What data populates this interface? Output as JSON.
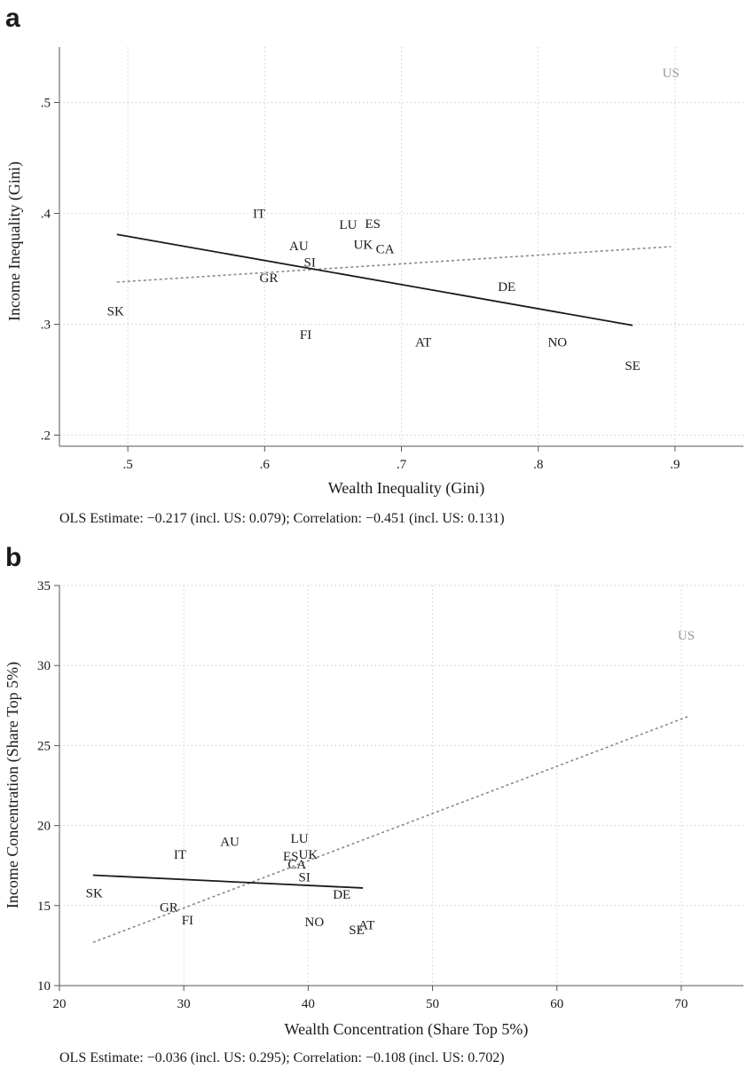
{
  "chart_data": [
    {
      "panel": "a",
      "type": "scatter",
      "xlabel": "Wealth Inequality (Gini)",
      "ylabel": "Income Inequality (Gini)",
      "xlim": [
        0.45,
        0.95
      ],
      "ylim": [
        0.19,
        0.55
      ],
      "xticks": [
        0.5,
        0.6,
        0.7,
        0.8,
        0.9
      ],
      "xtick_labels": [
        ".5",
        ".6",
        ".7",
        ".8",
        ".9"
      ],
      "yticks": [
        0.2,
        0.3,
        0.4,
        0.5
      ],
      "ytick_labels": [
        ".2",
        ".3",
        ".4",
        ".5"
      ],
      "grid": true,
      "points": [
        {
          "label": "US",
          "x": 0.897,
          "y": 0.527,
          "color": "#999999"
        },
        {
          "label": "IT",
          "x": 0.596,
          "y": 0.4
        },
        {
          "label": "LU",
          "x": 0.661,
          "y": 0.39
        },
        {
          "label": "ES",
          "x": 0.679,
          "y": 0.391
        },
        {
          "label": "AU",
          "x": 0.625,
          "y": 0.371
        },
        {
          "label": "UK",
          "x": 0.672,
          "y": 0.372
        },
        {
          "label": "CA",
          "x": 0.688,
          "y": 0.368
        },
        {
          "label": "SI",
          "x": 0.633,
          "y": 0.356
        },
        {
          "label": "GR",
          "x": 0.603,
          "y": 0.342
        },
        {
          "label": "DE",
          "x": 0.777,
          "y": 0.334
        },
        {
          "label": "SK",
          "x": 0.491,
          "y": 0.312
        },
        {
          "label": "FI",
          "x": 0.63,
          "y": 0.291
        },
        {
          "label": "AT",
          "x": 0.716,
          "y": 0.284
        },
        {
          "label": "NO",
          "x": 0.814,
          "y": 0.284
        },
        {
          "label": "SE",
          "x": 0.869,
          "y": 0.263
        }
      ],
      "fit_excl_us": {
        "x": [
          0.492,
          0.869
        ],
        "y": [
          0.381,
          0.299
        ],
        "color": "#1a1a1a"
      },
      "fit_incl_us": {
        "x": [
          0.492,
          0.897
        ],
        "y": [
          0.338,
          0.37
        ],
        "color": "#888888"
      },
      "note": "OLS Estimate: −0.217 (incl. US: 0.079); Correlation: −0.451 (incl. US: 0.131)"
    },
    {
      "panel": "b",
      "type": "scatter",
      "xlabel": "Wealth Concentration (Share Top 5%)",
      "ylabel": "Income Concentration (Share Top 5%)",
      "xlim": [
        20,
        75
      ],
      "ylim": [
        10,
        35
      ],
      "xticks": [
        20,
        30,
        40,
        50,
        60,
        70
      ],
      "xtick_labels": [
        "20",
        "30",
        "40",
        "50",
        "60",
        "70"
      ],
      "yticks": [
        10,
        15,
        20,
        25,
        30,
        35
      ],
      "ytick_labels": [
        "10",
        "15",
        "20",
        "25",
        "30",
        "35"
      ],
      "grid": true,
      "points": [
        {
          "label": "US",
          "x": 70.4,
          "y": 31.9,
          "color": "#999999"
        },
        {
          "label": "LU",
          "x": 39.3,
          "y": 19.2
        },
        {
          "label": "AU",
          "x": 33.7,
          "y": 19.0
        },
        {
          "label": "IT",
          "x": 29.7,
          "y": 18.2
        },
        {
          "label": "ES",
          "x": 38.6,
          "y": 18.1
        },
        {
          "label": "UK",
          "x": 40.0,
          "y": 18.2
        },
        {
          "label": "CA",
          "x": 39.1,
          "y": 17.6
        },
        {
          "label": "SI",
          "x": 39.7,
          "y": 16.8
        },
        {
          "label": "DE",
          "x": 42.7,
          "y": 15.7
        },
        {
          "label": "SK",
          "x": 22.8,
          "y": 15.8
        },
        {
          "label": "GR",
          "x": 28.8,
          "y": 14.9
        },
        {
          "label": "FI",
          "x": 30.3,
          "y": 14.1
        },
        {
          "label": "NO",
          "x": 40.5,
          "y": 14.0
        },
        {
          "label": "AT",
          "x": 44.7,
          "y": 13.8
        },
        {
          "label": "SE",
          "x": 43.9,
          "y": 13.5
        }
      ],
      "fit_excl_us": {
        "x": [
          22.7,
          44.4
        ],
        "y": [
          16.9,
          16.1
        ],
        "color": "#1a1a1a"
      },
      "fit_incl_us": {
        "x": [
          22.7,
          70.5
        ],
        "y": [
          12.7,
          26.8
        ],
        "color": "#888888"
      },
      "note": "OLS Estimate: −0.036 (incl. US: 0.295); Correlation: −0.108 (incl. US: 0.702)"
    }
  ]
}
